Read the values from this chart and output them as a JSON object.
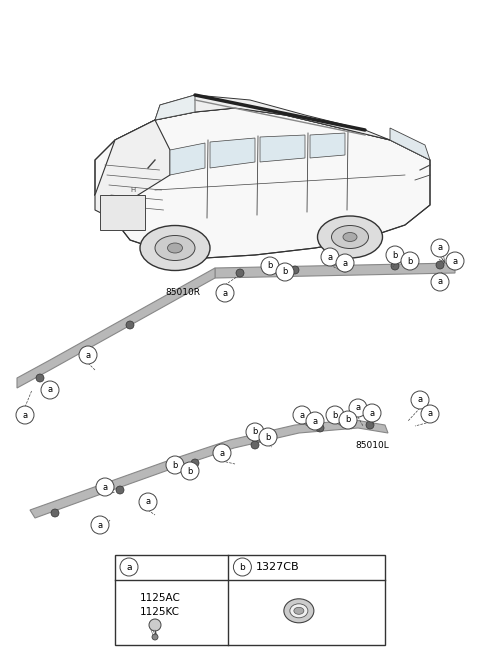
{
  "background_color": "#ffffff",
  "label_85010R": "85010R",
  "label_85010L": "85010L",
  "legend_a_code1": "1125AC",
  "legend_a_code2": "1125KC",
  "legend_b_code": "1327CB",
  "rail_color": "#b8b8b8",
  "rail_edge_color": "#888888",
  "dot_color": "#666666",
  "line_color": "#555555",
  "text_color": "#000000",
  "font_size_label": 6.5,
  "font_size_code": 7.5,
  "font_size_ref": 6.0
}
